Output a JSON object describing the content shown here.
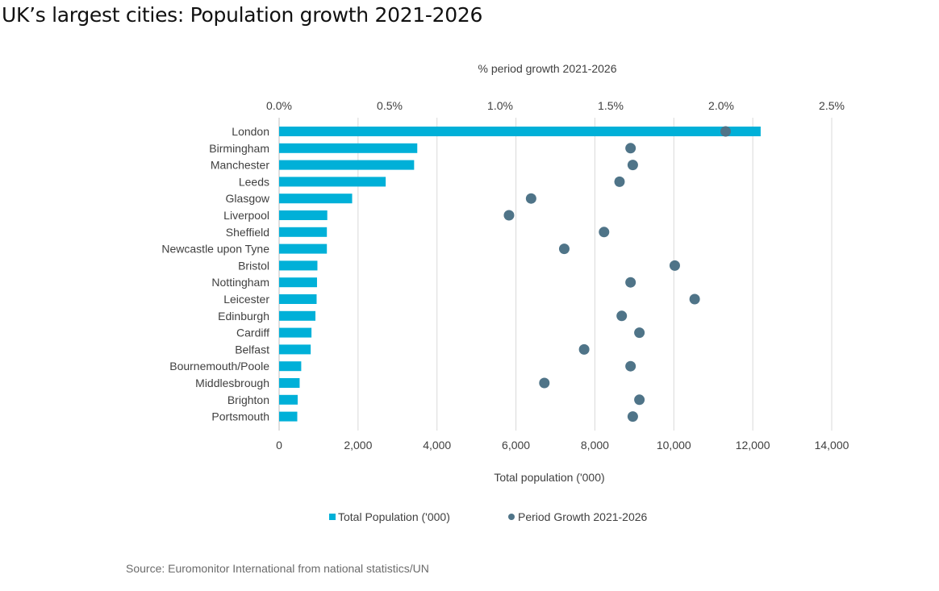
{
  "page": {
    "title": "UK’s largest cities: Population growth 2021-2026",
    "source": "Source: Euromonitor International from national statistics/UN"
  },
  "colors": {
    "bar": "#00b0d8",
    "dot": "#4f7488",
    "grid": "#d9d9d9",
    "text": "#404040"
  },
  "chart_data": {
    "type": "bar",
    "orientation": "horizontal",
    "title": "UK’s largest cities: Population growth 2021-2026",
    "top_axis_title": "% period growth  2021-2026",
    "bottom_axis_title": "Total population ('000)",
    "categories": [
      "London",
      "Birmingham",
      "Manchester",
      "Leeds",
      "Glasgow",
      "Liverpool",
      "Sheffield",
      "Newcastle upon Tyne",
      "Bristol",
      "Nottingham",
      "Leicester",
      "Edinburgh",
      "Cardiff",
      "Belfast",
      "Bournemouth/Poole",
      "Middlesbrough",
      "Brighton",
      "Portsmouth"
    ],
    "series": [
      {
        "name": "Total Population ('000)",
        "axis": "bottom",
        "mark": "bar",
        "values": [
          12200,
          3500,
          3420,
          2700,
          1850,
          1220,
          1210,
          1210,
          970,
          960,
          950,
          920,
          820,
          800,
          560,
          520,
          470,
          460
        ]
      },
      {
        "name": "Period Growth 2021-2026",
        "axis": "top",
        "mark": "dot",
        "values": [
          2.02,
          1.59,
          1.6,
          1.54,
          1.14,
          1.04,
          1.47,
          1.29,
          1.79,
          1.59,
          1.88,
          1.55,
          1.63,
          1.38,
          1.59,
          1.2,
          1.63,
          1.6
        ]
      }
    ],
    "x_bottom": {
      "range": [
        0,
        14000
      ],
      "ticks": [
        "0",
        "2,000",
        "4,000",
        "6,000",
        "8,000",
        "10,000",
        "12,000",
        "14,000"
      ]
    },
    "x_top": {
      "range": [
        0,
        2.5
      ],
      "ticks": [
        "0.0%",
        "0.5%",
        "1.0%",
        "1.5%",
        "2.0%",
        "2.5%"
      ]
    },
    "grid": true,
    "legend_position": "bottom-center",
    "legend": [
      {
        "label": "Total Population ('000)",
        "symbol": "square"
      },
      {
        "label": "Period Growth 2021-2026",
        "symbol": "circle"
      }
    ]
  }
}
